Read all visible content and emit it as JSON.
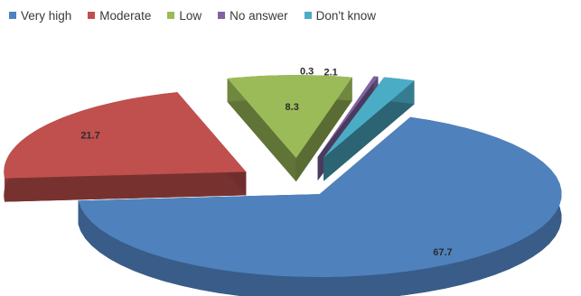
{
  "chart_data": {
    "type": "pie",
    "variant": "3d-exploded",
    "categories": [
      "Very high",
      "Moderate",
      "Low",
      "No answer",
      "Don't know"
    ],
    "values": [
      67.7,
      21.7,
      8.3,
      0.3,
      2.1
    ],
    "labels": [
      "67.7",
      "21.7",
      "8.3",
      "0.3",
      "2.1"
    ],
    "colors": [
      "#4f81bd",
      "#c0504d",
      "#9bbb59",
      "#8064a2",
      "#4bacc6"
    ],
    "legend_position": "top"
  }
}
